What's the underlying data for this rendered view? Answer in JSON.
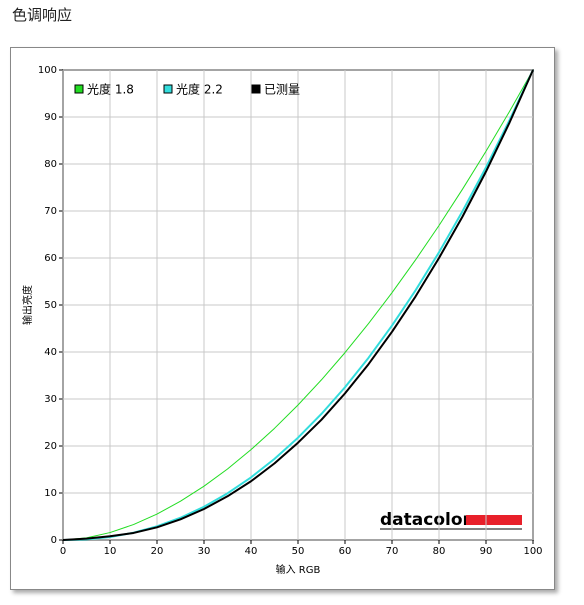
{
  "header": {
    "title": "色调响应"
  },
  "logo": "datacolor",
  "chart_data": {
    "type": "line",
    "x_label": "输入 RGB",
    "y_label": "输出亮度",
    "x": [
      0,
      5,
      10,
      15,
      20,
      25,
      30,
      35,
      40,
      45,
      50,
      55,
      60,
      65,
      70,
      75,
      80,
      85,
      90,
      95,
      100
    ],
    "series": [
      {
        "name": "光度 1.8",
        "color": "#22dd22",
        "width": 1,
        "values": [
          0,
          0.46,
          1.58,
          3.29,
          5.52,
          8.25,
          11.45,
          15.1,
          19.22,
          23.76,
          28.72,
          34.09,
          39.87,
          46.05,
          52.62,
          59.58,
          66.92,
          74.64,
          82.72,
          91.18,
          100
        ]
      },
      {
        "name": "光度 2.2",
        "color": "#33dddd",
        "width": 2,
        "values": [
          0,
          0.14,
          0.63,
          1.54,
          2.9,
          4.74,
          7.07,
          9.93,
          13.32,
          17.26,
          21.76,
          26.84,
          32.5,
          38.76,
          45.63,
          53.1,
          61.21,
          69.94,
          79.3,
          89.33,
          100
        ]
      },
      {
        "name": "已测量",
        "color": "#000000",
        "width": 2,
        "values": [
          0,
          0.3,
          0.8,
          1.5,
          2.7,
          4.4,
          6.6,
          9.3,
          12.5,
          16.3,
          20.7,
          25.6,
          31.2,
          37.4,
          44.3,
          51.8,
          60,
          68.8,
          78.4,
          88.8,
          100
        ]
      }
    ],
    "xlim": [
      0,
      100
    ],
    "ylim": [
      0,
      100
    ],
    "xticks": [
      0,
      10,
      20,
      30,
      40,
      50,
      60,
      70,
      80,
      90,
      100
    ],
    "yticks": [
      0,
      10,
      20,
      30,
      40,
      50,
      60,
      70,
      80,
      90,
      100
    ],
    "grid": true,
    "legend": "top-left"
  }
}
